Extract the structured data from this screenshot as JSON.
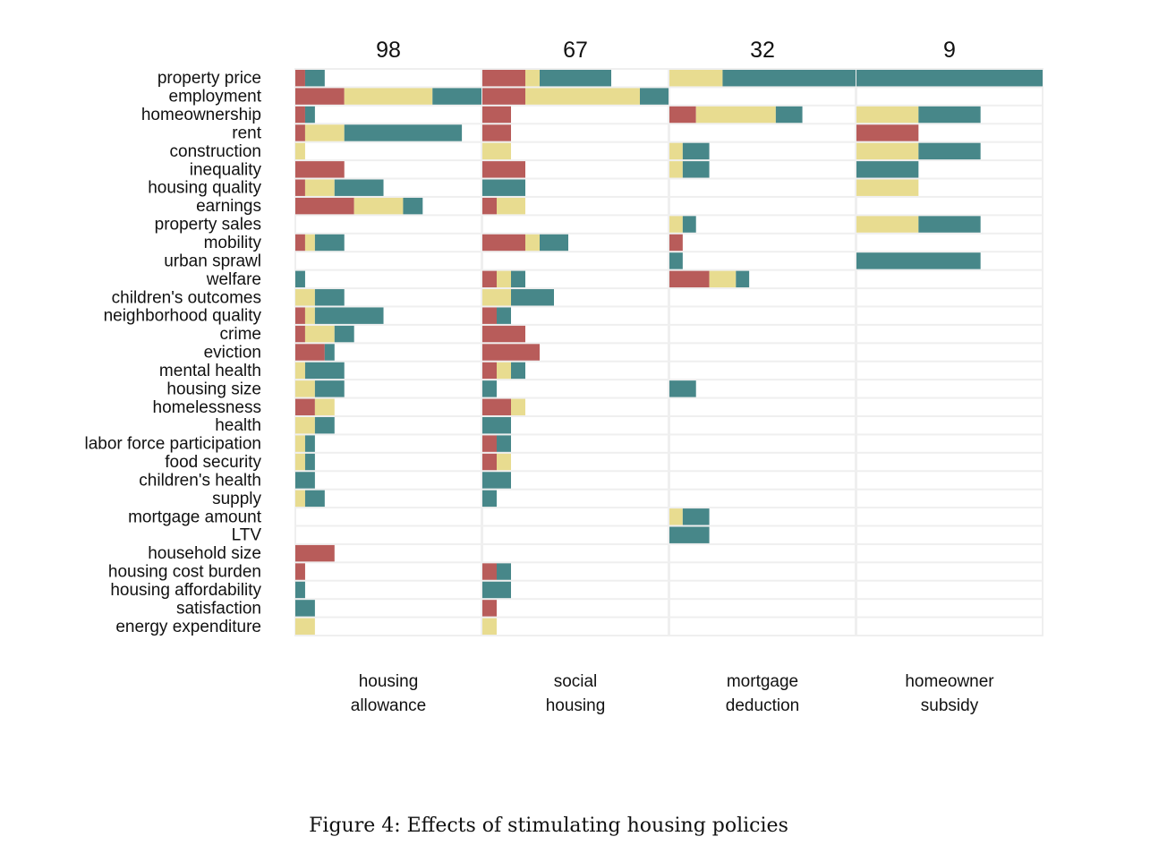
{
  "chart_data": {
    "type": "bar",
    "orientation": "horizontal",
    "stacked": true,
    "caption": "Figure 4: Effects of stimulating housing policies",
    "categories": [
      "property price",
      "employment",
      "homeownership",
      "rent",
      "construction",
      "inequality",
      "housing quality",
      "earnings",
      "property sales",
      "mobility",
      "urban sprawl",
      "welfare",
      "children's outcomes",
      "neighborhood quality",
      "crime",
      "eviction",
      "mental health",
      "housing size",
      "homelessness",
      "health",
      "labor force participation",
      "food security",
      "children's health",
      "supply",
      "mortgage amount",
      "LTV",
      "household size",
      "housing cost burden",
      "housing affordability",
      "satisfaction",
      "energy expenditure"
    ],
    "segment_colors": [
      "#b85c5a",
      "#e8dc90",
      "#478789"
    ],
    "panels": [
      {
        "header": "98",
        "label_line1": "housing",
        "label_line2": "allowance",
        "x_max": 19,
        "values": [
          [
            1,
            0,
            2
          ],
          [
            5,
            9,
            5
          ],
          [
            1,
            0,
            1
          ],
          [
            1,
            4,
            12
          ],
          [
            0,
            1,
            0
          ],
          [
            5,
            0,
            0
          ],
          [
            1,
            3,
            5
          ],
          [
            6,
            5,
            2
          ],
          [
            0,
            0,
            0
          ],
          [
            1,
            1,
            3
          ],
          [
            0,
            0,
            0
          ],
          [
            0,
            0,
            1
          ],
          [
            0,
            2,
            3
          ],
          [
            1,
            1,
            7
          ],
          [
            1,
            3,
            2
          ],
          [
            3,
            0,
            1
          ],
          [
            0,
            1,
            4
          ],
          [
            0,
            2,
            3
          ],
          [
            2,
            2,
            0
          ],
          [
            0,
            2,
            2
          ],
          [
            0,
            1,
            1
          ],
          [
            0,
            1,
            1
          ],
          [
            0,
            0,
            2
          ],
          [
            0,
            1,
            2
          ],
          [
            0,
            0,
            0
          ],
          [
            0,
            0,
            0
          ],
          [
            4,
            0,
            0
          ],
          [
            1,
            0,
            0
          ],
          [
            0,
            0,
            1
          ],
          [
            0,
            0,
            2
          ],
          [
            0,
            2,
            0
          ]
        ]
      },
      {
        "header": "67",
        "label_line1": "social",
        "label_line2": "housing",
        "x_max": 13,
        "values": [
          [
            3,
            1,
            5
          ],
          [
            3,
            8,
            2
          ],
          [
            2,
            0,
            0
          ],
          [
            2,
            0,
            0
          ],
          [
            0,
            2,
            0
          ],
          [
            3,
            0,
            0
          ],
          [
            0,
            0,
            3
          ],
          [
            1,
            2,
            0
          ],
          [
            0,
            0,
            0
          ],
          [
            3,
            1,
            2
          ],
          [
            0,
            0,
            0
          ],
          [
            1,
            1,
            1
          ],
          [
            0,
            2,
            3
          ],
          [
            1,
            0,
            1
          ],
          [
            3,
            0,
            0
          ],
          [
            4,
            0,
            0
          ],
          [
            1,
            1,
            1
          ],
          [
            0,
            0,
            1
          ],
          [
            2,
            1,
            0
          ],
          [
            0,
            0,
            2
          ],
          [
            1,
            0,
            1
          ],
          [
            1,
            1,
            0
          ],
          [
            0,
            0,
            2
          ],
          [
            0,
            0,
            1
          ],
          [
            0,
            0,
            0
          ],
          [
            0,
            0,
            0
          ],
          [
            0,
            0,
            0
          ],
          [
            1,
            0,
            1
          ],
          [
            0,
            0,
            2
          ],
          [
            1,
            0,
            0
          ],
          [
            0,
            1,
            0
          ]
        ]
      },
      {
        "header": "32",
        "label_line1": "mortgage",
        "label_line2": "deduction",
        "x_max": 14,
        "values": [
          [
            0,
            4,
            10
          ],
          [
            0,
            0,
            0
          ],
          [
            2,
            6,
            2
          ],
          [
            0,
            0,
            0
          ],
          [
            0,
            1,
            2
          ],
          [
            0,
            1,
            2
          ],
          [
            0,
            0,
            0
          ],
          [
            0,
            0,
            0
          ],
          [
            0,
            1,
            1
          ],
          [
            1,
            0,
            0
          ],
          [
            0,
            0,
            1
          ],
          [
            3,
            2,
            1
          ],
          [
            0,
            0,
            0
          ],
          [
            0,
            0,
            0
          ],
          [
            0,
            0,
            0
          ],
          [
            0,
            0,
            0
          ],
          [
            0,
            0,
            0
          ],
          [
            0,
            0,
            2
          ],
          [
            0,
            0,
            0
          ],
          [
            0,
            0,
            0
          ],
          [
            0,
            0,
            0
          ],
          [
            0,
            0,
            0
          ],
          [
            0,
            0,
            0
          ],
          [
            0,
            0,
            0
          ],
          [
            0,
            1,
            2
          ],
          [
            0,
            0,
            3
          ],
          [
            0,
            0,
            0
          ],
          [
            0,
            0,
            0
          ],
          [
            0,
            0,
            0
          ],
          [
            0,
            0,
            0
          ],
          [
            0,
            0,
            0
          ]
        ]
      },
      {
        "header": "9",
        "label_line1": "homeowner",
        "label_line2": "subsidy",
        "x_max": 3,
        "values": [
          [
            0,
            0,
            3
          ],
          [
            0,
            0,
            0
          ],
          [
            0,
            1,
            1
          ],
          [
            1,
            0,
            0
          ],
          [
            0,
            1,
            1
          ],
          [
            0,
            0,
            1
          ],
          [
            0,
            1,
            0
          ],
          [
            0,
            0,
            0
          ],
          [
            0,
            1,
            1
          ],
          [
            0,
            0,
            0
          ],
          [
            0,
            0,
            2
          ],
          [
            0,
            0,
            0
          ],
          [
            0,
            0,
            0
          ],
          [
            0,
            0,
            0
          ],
          [
            0,
            0,
            0
          ],
          [
            0,
            0,
            0
          ],
          [
            0,
            0,
            0
          ],
          [
            0,
            0,
            0
          ],
          [
            0,
            0,
            0
          ],
          [
            0,
            0,
            0
          ],
          [
            0,
            0,
            0
          ],
          [
            0,
            0,
            0
          ],
          [
            0,
            0,
            0
          ],
          [
            0,
            0,
            0
          ],
          [
            0,
            0,
            0
          ],
          [
            0,
            0,
            0
          ],
          [
            0,
            0,
            0
          ],
          [
            0,
            0,
            0
          ],
          [
            0,
            0,
            0
          ],
          [
            0,
            0,
            0
          ],
          [
            0,
            0,
            0
          ]
        ]
      }
    ]
  }
}
